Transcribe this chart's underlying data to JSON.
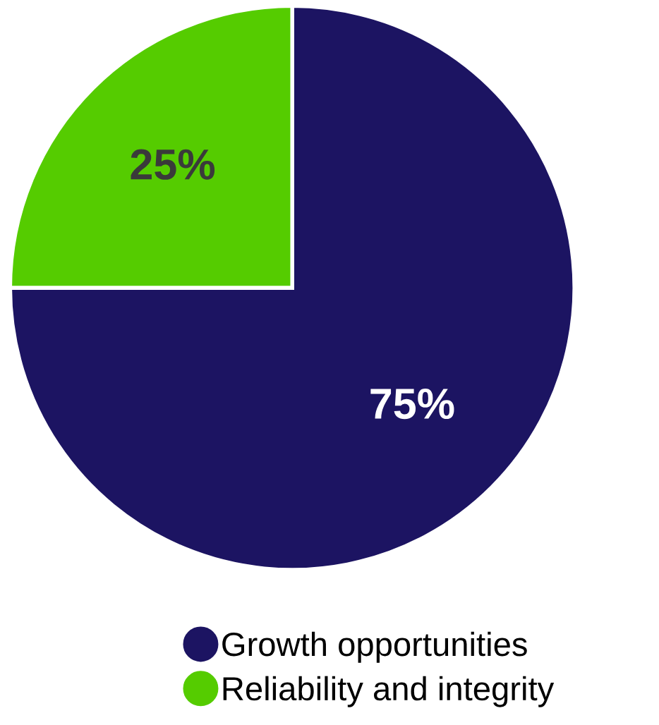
{
  "chart_data": {
    "type": "pie",
    "categories": [
      "Growth opportunities",
      "Reliability and integrity"
    ],
    "values": [
      75,
      25
    ],
    "colors": [
      "#1c1462",
      "#55cc00"
    ],
    "value_labels": [
      "75%",
      "25%"
    ],
    "legend": "bottom"
  }
}
